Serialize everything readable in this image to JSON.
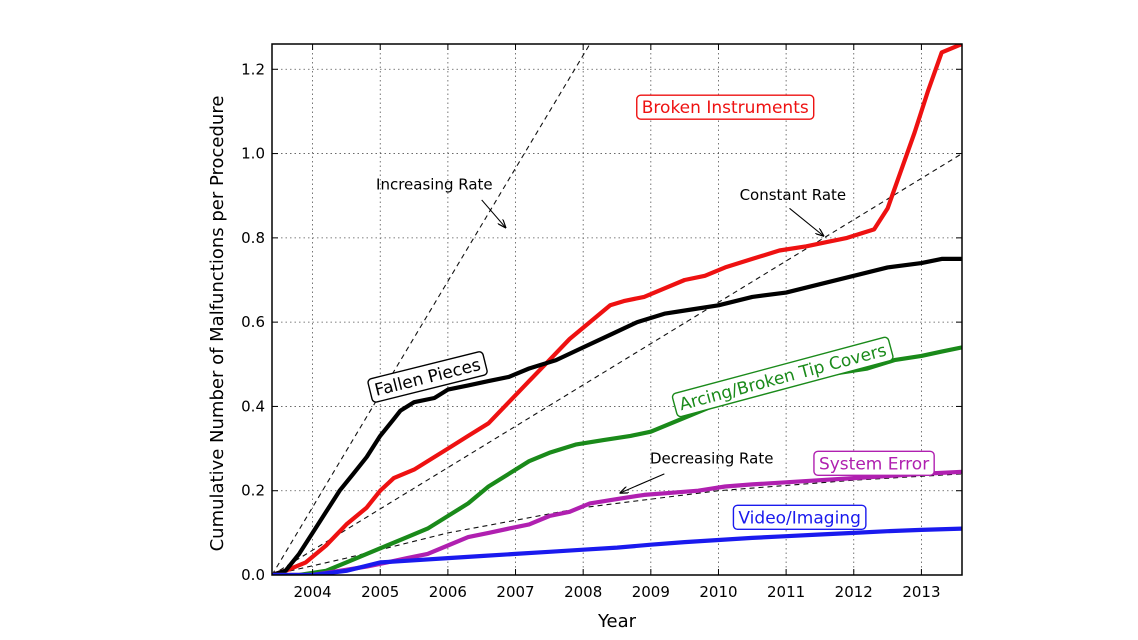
{
  "chart_data": {
    "type": "line",
    "title": "",
    "xlabel": "Year",
    "ylabel": "Cumulative Number of Malfunctions per Procedure",
    "xlim": [
      2003.4,
      2013.6
    ],
    "ylim": [
      0.0,
      1.26
    ],
    "grid": true,
    "x_ticks": [
      {
        "value": 2004,
        "label": "2004"
      },
      {
        "value": 2005,
        "label": "2005"
      },
      {
        "value": 2006,
        "label": "2006"
      },
      {
        "value": 2007,
        "label": "2007"
      },
      {
        "value": 2008,
        "label": "2008"
      },
      {
        "value": 2009,
        "label": "2009"
      },
      {
        "value": 2010,
        "label": "2010"
      },
      {
        "value": 2011,
        "label": "2011"
      },
      {
        "value": 2012,
        "label": "2012"
      },
      {
        "value": 2013,
        "label": "2013"
      }
    ],
    "y_ticks": [
      {
        "value": 0.0,
        "label": "0.0"
      },
      {
        "value": 0.2,
        "label": "0.2"
      },
      {
        "value": 0.4,
        "label": "0.4"
      },
      {
        "value": 0.6,
        "label": "0.6"
      },
      {
        "value": 0.8,
        "label": "0.8"
      },
      {
        "value": 1.0,
        "label": "1.0"
      },
      {
        "value": 1.2,
        "label": "1.2"
      }
    ],
    "series": [
      {
        "name": "Broken Instruments",
        "color": "#ee1111",
        "x": [
          2003.4,
          2003.6,
          2003.9,
          2004.2,
          2004.5,
          2004.8,
          2005.0,
          2005.2,
          2005.5,
          2005.8,
          2006.0,
          2006.3,
          2006.6,
          2006.9,
          2007.2,
          2007.5,
          2007.8,
          2008.1,
          2008.4,
          2008.6,
          2008.9,
          2009.2,
          2009.5,
          2009.8,
          2010.1,
          2010.5,
          2010.9,
          2011.3,
          2011.6,
          2011.9,
          2012.1,
          2012.3,
          2012.5,
          2012.7,
          2012.9,
          2013.1,
          2013.3,
          2013.6
        ],
        "y": [
          0.0,
          0.01,
          0.03,
          0.07,
          0.12,
          0.16,
          0.2,
          0.23,
          0.25,
          0.28,
          0.3,
          0.33,
          0.36,
          0.41,
          0.46,
          0.51,
          0.56,
          0.6,
          0.64,
          0.65,
          0.66,
          0.68,
          0.7,
          0.71,
          0.73,
          0.75,
          0.77,
          0.78,
          0.79,
          0.8,
          0.81,
          0.82,
          0.87,
          0.96,
          1.05,
          1.15,
          1.24,
          1.26
        ]
      },
      {
        "name": "Fallen Pieces",
        "color": "#000000",
        "x": [
          2003.4,
          2003.6,
          2003.8,
          2004.0,
          2004.2,
          2004.4,
          2004.6,
          2004.8,
          2005.0,
          2005.2,
          2005.3,
          2005.5,
          2005.8,
          2006.0,
          2006.3,
          2006.6,
          2006.9,
          2007.2,
          2007.6,
          2008.0,
          2008.4,
          2008.8,
          2009.2,
          2009.6,
          2010.0,
          2010.5,
          2011.0,
          2011.5,
          2012.0,
          2012.5,
          2013.0,
          2013.3,
          2013.6
        ],
        "y": [
          0.0,
          0.01,
          0.05,
          0.1,
          0.15,
          0.2,
          0.24,
          0.28,
          0.33,
          0.37,
          0.39,
          0.41,
          0.42,
          0.44,
          0.45,
          0.46,
          0.47,
          0.49,
          0.51,
          0.54,
          0.57,
          0.6,
          0.62,
          0.63,
          0.64,
          0.66,
          0.67,
          0.69,
          0.71,
          0.73,
          0.74,
          0.75,
          0.75
        ]
      },
      {
        "name": "Arcing/Broken Tip Covers",
        "color": "#1a8a1a",
        "x": [
          2003.4,
          2003.8,
          2004.2,
          2004.5,
          2004.8,
          2005.1,
          2005.4,
          2005.7,
          2006.0,
          2006.3,
          2006.6,
          2006.9,
          2007.2,
          2007.5,
          2007.9,
          2008.3,
          2008.7,
          2009.0,
          2009.3,
          2009.6,
          2009.9,
          2010.2,
          2010.6,
          2011.0,
          2011.4,
          2011.8,
          2012.2,
          2012.6,
          2013.0,
          2013.3,
          2013.6
        ],
        "y": [
          0.0,
          0.0,
          0.01,
          0.03,
          0.05,
          0.07,
          0.09,
          0.11,
          0.14,
          0.17,
          0.21,
          0.24,
          0.27,
          0.29,
          0.31,
          0.32,
          0.33,
          0.34,
          0.36,
          0.38,
          0.4,
          0.42,
          0.44,
          0.45,
          0.47,
          0.48,
          0.49,
          0.51,
          0.52,
          0.53,
          0.54
        ]
      },
      {
        "name": "System Error",
        "color": "#b020b0",
        "x": [
          2003.4,
          2004.0,
          2004.4,
          2004.8,
          2005.1,
          2005.4,
          2005.7,
          2006.0,
          2006.3,
          2006.6,
          2006.9,
          2007.2,
          2007.5,
          2007.8,
          2008.1,
          2008.5,
          2008.9,
          2009.3,
          2009.7,
          2010.1,
          2010.5,
          2011.0,
          2011.5,
          2012.0,
          2012.5,
          2013.0,
          2013.6
        ],
        "y": [
          0.0,
          0.0,
          0.01,
          0.02,
          0.03,
          0.04,
          0.05,
          0.07,
          0.09,
          0.1,
          0.11,
          0.12,
          0.14,
          0.15,
          0.17,
          0.18,
          0.19,
          0.195,
          0.2,
          0.21,
          0.215,
          0.22,
          0.225,
          0.23,
          0.235,
          0.24,
          0.245
        ]
      },
      {
        "name": "Video/Imaging",
        "color": "#1a1aee",
        "x": [
          2003.4,
          2004.0,
          2004.5,
          2005.0,
          2005.5,
          2006.0,
          2006.5,
          2007.0,
          2007.5,
          2008.0,
          2008.5,
          2009.0,
          2009.5,
          2010.0,
          2010.5,
          2011.0,
          2011.5,
          2012.0,
          2012.5,
          2013.0,
          2013.6
        ],
        "y": [
          0.0,
          0.0,
          0.01,
          0.03,
          0.035,
          0.04,
          0.045,
          0.05,
          0.055,
          0.06,
          0.065,
          0.072,
          0.078,
          0.083,
          0.088,
          0.092,
          0.096,
          0.1,
          0.104,
          0.107,
          0.11
        ]
      }
    ],
    "reference_lines": [
      {
        "name": "Increasing Rate",
        "x": [
          2003.4,
          2008.1
        ],
        "y": [
          0.0,
          1.26
        ]
      },
      {
        "name": "Constant Rate",
        "x": [
          2003.4,
          2013.6
        ],
        "y": [
          0.0,
          1.0
        ]
      },
      {
        "name": "Decreasing Rate",
        "x": [
          2003.4,
          2004.5,
          2006.0,
          2008.0,
          2010.0,
          2012.0,
          2013.6
        ],
        "y": [
          0.0,
          0.04,
          0.1,
          0.16,
          0.2,
          0.225,
          0.24
        ]
      }
    ],
    "annotations": [
      {
        "text": "Increasing Rate",
        "text_x": 2005.8,
        "text_y": 0.915,
        "arrow_from_x": 2006.5,
        "arrow_from_y": 0.89,
        "arrow_to_x": 2006.85,
        "arrow_to_y": 0.825
      },
      {
        "text": "Constant Rate",
        "text_x": 2011.1,
        "text_y": 0.89,
        "arrow_from_x": 2011.05,
        "arrow_from_y": 0.87,
        "arrow_to_x": 2011.55,
        "arrow_to_y": 0.805
      },
      {
        "text": "Decreasing Rate",
        "text_x": 2009.9,
        "text_y": 0.265,
        "arrow_from_x": 2009.2,
        "arrow_from_y": 0.24,
        "arrow_to_x": 2008.55,
        "arrow_to_y": 0.195
      }
    ],
    "series_labels": [
      {
        "text": "Broken Instruments",
        "series": 0,
        "x": 2010.1,
        "y": 1.11,
        "rotation": 0
      },
      {
        "text": "Fallen Pieces",
        "series": 1,
        "x": 2005.7,
        "y": 0.47,
        "rotation": -14
      },
      {
        "text": "Arcing/Broken Tip Covers",
        "series": 2,
        "x": 2010.95,
        "y": 0.47,
        "rotation": -15
      },
      {
        "text": "System Error",
        "series": 3,
        "x": 2012.3,
        "y": 0.265,
        "rotation": 0
      },
      {
        "text": "Video/Imaging",
        "series": 4,
        "x": 2011.2,
        "y": 0.137,
        "rotation": 0
      }
    ]
  }
}
